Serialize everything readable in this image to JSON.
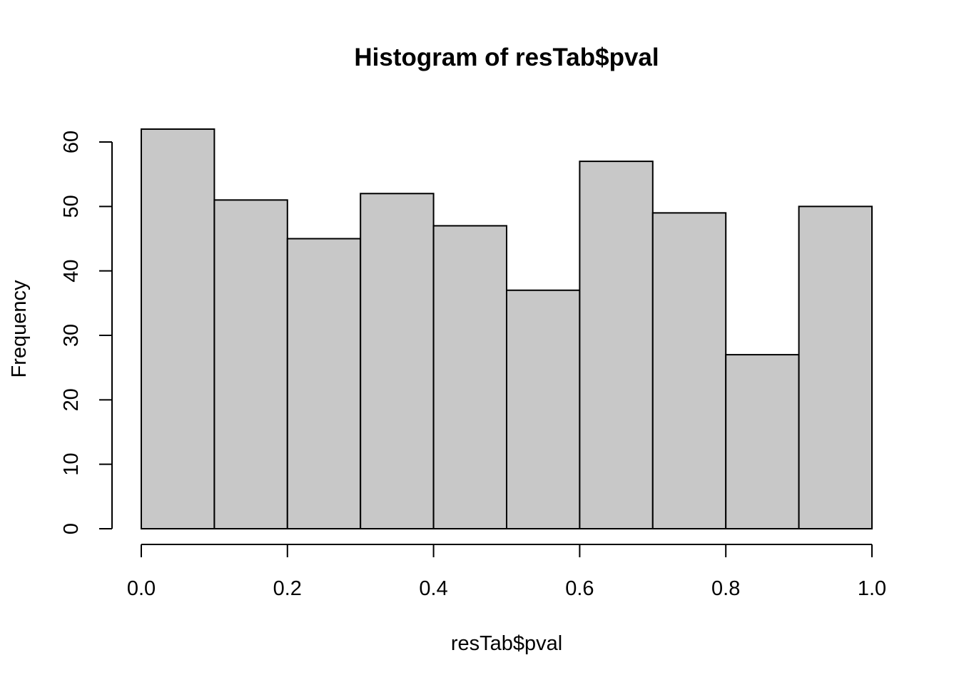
{
  "chart_data": {
    "type": "bar",
    "title": "Histogram of resTab$pval",
    "xlabel": "resTab$pval",
    "ylabel": "Frequency",
    "bins": [
      {
        "start": 0.0,
        "end": 0.1,
        "count": 62
      },
      {
        "start": 0.1,
        "end": 0.2,
        "count": 51
      },
      {
        "start": 0.2,
        "end": 0.3,
        "count": 45
      },
      {
        "start": 0.3,
        "end": 0.4,
        "count": 52
      },
      {
        "start": 0.4,
        "end": 0.5,
        "count": 47
      },
      {
        "start": 0.5,
        "end": 0.6,
        "count": 37
      },
      {
        "start": 0.6,
        "end": 0.7,
        "count": 57
      },
      {
        "start": 0.7,
        "end": 0.8,
        "count": 49
      },
      {
        "start": 0.8,
        "end": 0.9,
        "count": 27
      },
      {
        "start": 0.9,
        "end": 1.0,
        "count": 50
      }
    ],
    "xticks": [
      0.0,
      0.2,
      0.4,
      0.6,
      0.8,
      1.0
    ],
    "xtick_labels": [
      "0.0",
      "0.2",
      "0.4",
      "0.6",
      "0.8",
      "1.0"
    ],
    "yticks": [
      0,
      10,
      20,
      30,
      40,
      50,
      60
    ],
    "ytick_labels": [
      "0",
      "10",
      "20",
      "30",
      "40",
      "50",
      "60"
    ],
    "xlim": [
      0,
      1
    ],
    "ylim": [
      0,
      60
    ],
    "bar_color": "#C8C8C8",
    "edge_color": "#000000",
    "grid": false,
    "legend": "none"
  }
}
